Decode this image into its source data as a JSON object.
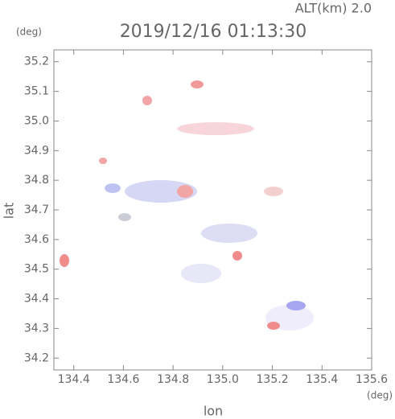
{
  "chart_data": {
    "type": "radar-map",
    "title": "2019/12/16 01:13:30",
    "subtitle": "ALT(km) 2.0",
    "x_label": "lon",
    "y_label": "lat",
    "x_unit": "(deg)",
    "y_unit": "(deg)",
    "xlim": [
      134.32,
      135.6
    ],
    "ylim": [
      34.16,
      35.24
    ],
    "xticks": [
      134.4,
      134.6,
      134.8,
      {
        "value": 135.0,
        "label": "135.0"
      },
      135.2,
      135.4,
      135.6
    ],
    "yticks": [
      34.2,
      34.3,
      34.4,
      34.5,
      34.6,
      34.7,
      34.8,
      34.9,
      {
        "value": 35.0,
        "label": "35.0"
      },
      35.1,
      35.2
    ]
  }
}
